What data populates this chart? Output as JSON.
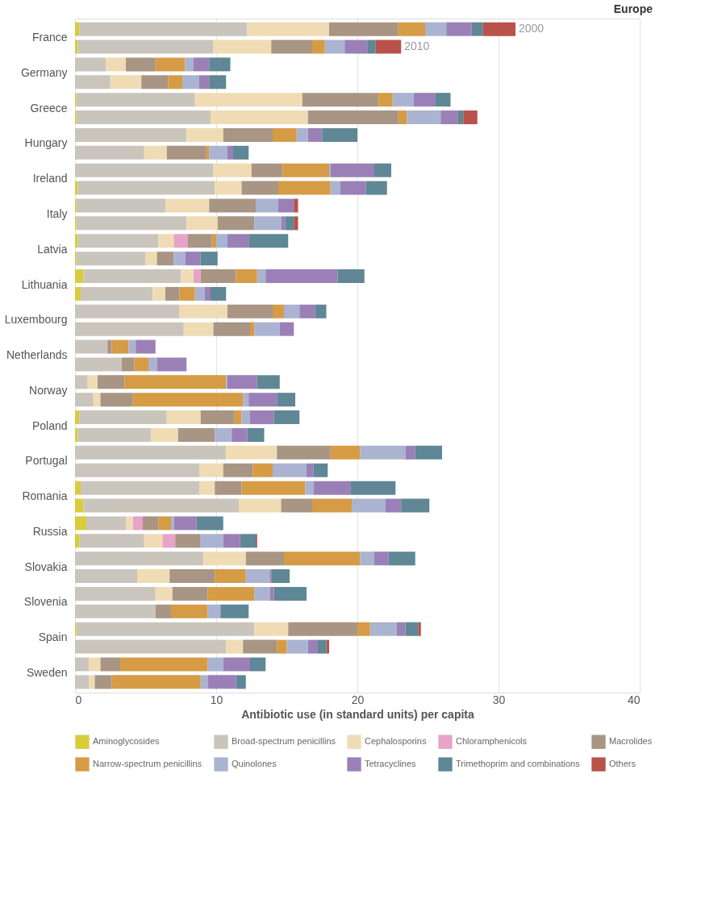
{
  "chart_data": {
    "type": "bar",
    "orientation": "horizontal",
    "stacked": true,
    "title": "Europe",
    "xlabel": "Antibiotic use (in standard units) per capita",
    "categories": [
      "France",
      null,
      "Germany",
      null,
      "Greece",
      null,
      "Hungary",
      null,
      "Ireland",
      null,
      "Italy",
      null,
      "Latvia",
      null,
      "Lithuania",
      null,
      "Luxembourg",
      null,
      "Netherlands",
      null,
      "Norway",
      null,
      "Poland",
      null,
      "Portugal",
      null,
      "Romania",
      null,
      "Russia",
      null,
      "Slovakia",
      null,
      "Slovenia",
      null,
      "Spain",
      null,
      "Sweden",
      null
    ],
    "xlim": [
      0,
      40
    ],
    "xticks": [
      0,
      10,
      20,
      30,
      40
    ],
    "grid": "x",
    "legend": "bottom",
    "annotations": [
      "2000",
      "2010"
    ],
    "series": [
      {
        "name": "Aminoglycosides",
        "color": "#d9cc3a",
        "values": [
          0.3,
          0.2,
          null,
          null,
          0.1,
          0.1,
          null,
          null,
          null,
          0.2,
          0.1,
          0.1,
          0.2,
          0.1,
          0.6,
          0.4,
          null,
          null,
          null,
          null,
          null,
          null,
          0.3,
          0.2,
          null,
          null,
          0.4,
          0.6,
          0.8,
          0.3,
          null,
          null,
          null,
          null,
          0.1,
          null,
          null,
          null
        ]
      },
      {
        "name": "Broad-spectrum penicillins",
        "color": "#c9c5bc",
        "values": [
          11.9,
          9.6,
          2.2,
          2.5,
          8.4,
          9.5,
          7.9,
          4.9,
          9.8,
          9.7,
          6.3,
          7.8,
          5.7,
          4.9,
          6.9,
          5.1,
          7.4,
          7.7,
          2.3,
          3.3,
          0.9,
          1.3,
          6.2,
          5.2,
          10.7,
          8.8,
          8.4,
          11.0,
          2.8,
          4.6,
          9.1,
          4.4,
          5.7,
          5.7,
          12.6,
          10.7,
          1.0,
          1.0
        ]
      },
      {
        "name": "Cephalosporins",
        "color": "#f0dcb4",
        "values": [
          5.8,
          4.1,
          1.4,
          2.2,
          7.6,
          6.9,
          2.6,
          1.6,
          2.7,
          1.9,
          3.1,
          2.2,
          1.1,
          0.8,
          0.9,
          0.9,
          3.4,
          2.1,
          null,
          null,
          0.7,
          0.5,
          2.4,
          1.9,
          3.6,
          1.7,
          1.1,
          3.0,
          0.5,
          1.3,
          3.0,
          2.3,
          1.2,
          null,
          2.4,
          1.2,
          0.8,
          0.4
        ]
      },
      {
        "name": "Chloramphenicols",
        "color": "#e7a3c9",
        "values": [
          null,
          null,
          null,
          null,
          null,
          null,
          null,
          null,
          null,
          null,
          null,
          null,
          1.0,
          null,
          0.5,
          null,
          null,
          null,
          null,
          null,
          null,
          null,
          null,
          null,
          null,
          null,
          null,
          null,
          0.7,
          0.9,
          null,
          null,
          null,
          null,
          null,
          null,
          null,
          null
        ]
      },
      {
        "name": "Macrolides",
        "color": "#a89584",
        "values": [
          4.9,
          2.9,
          2.1,
          1.9,
          5.4,
          6.4,
          3.5,
          2.8,
          2.2,
          2.6,
          3.3,
          2.6,
          1.7,
          1.2,
          2.5,
          1.0,
          3.2,
          2.6,
          0.3,
          0.9,
          1.9,
          2.3,
          2.4,
          2.6,
          3.8,
          2.1,
          1.9,
          2.2,
          1.1,
          1.8,
          2.7,
          3.2,
          2.5,
          1.1,
          4.9,
          2.4,
          1.4,
          1.2
        ]
      },
      {
        "name": "Narrow-spectrum penicillins",
        "color": "#d69b45",
        "values": [
          1.9,
          0.9,
          2.1,
          1.0,
          1.0,
          0.6,
          1.7,
          0.2,
          3.3,
          3.7,
          null,
          null,
          0.3,
          null,
          1.5,
          1.1,
          0.8,
          0.3,
          1.2,
          1.0,
          7.2,
          7.8,
          0.5,
          null,
          2.1,
          1.4,
          4.5,
          2.8,
          0.9,
          null,
          5.4,
          2.2,
          3.3,
          2.6,
          0.9,
          0.7,
          6.2,
          6.3
        ]
      },
      {
        "name": "Quinolones",
        "color": "#aab4d1",
        "values": [
          1.5,
          1.4,
          0.6,
          1.2,
          1.5,
          2.4,
          0.8,
          1.3,
          0.1,
          0.7,
          1.6,
          1.9,
          0.8,
          0.8,
          0.6,
          0.7,
          1.1,
          1.8,
          0.5,
          0.6,
          0.1,
          0.4,
          0.6,
          1.2,
          3.2,
          2.4,
          0.6,
          2.4,
          0.2,
          1.6,
          1.0,
          1.7,
          1.1,
          0.9,
          1.9,
          1.5,
          1.1,
          0.5
        ]
      },
      {
        "name": "Tetracyclines",
        "color": "#9b80b8",
        "values": [
          1.8,
          1.6,
          1.1,
          0.7,
          1.5,
          1.2,
          1.0,
          0.4,
          3.1,
          1.8,
          1.1,
          0.3,
          1.5,
          1.1,
          5.1,
          0.4,
          1.1,
          1.0,
          1.4,
          2.1,
          2.1,
          2.0,
          1.7,
          1.1,
          0.7,
          0.5,
          2.6,
          1.1,
          1.6,
          1.2,
          1.0,
          0.1,
          0.3,
          null,
          0.6,
          0.7,
          1.9,
          2.0
        ]
      },
      {
        "name": "Trimethoprim and combinations",
        "color": "#5f8795",
        "values": [
          0.8,
          0.6,
          1.5,
          1.2,
          1.1,
          0.4,
          2.5,
          1.1,
          1.2,
          1.5,
          null,
          0.6,
          2.8,
          1.2,
          1.9,
          1.1,
          0.8,
          null,
          null,
          null,
          1.6,
          1.3,
          1.8,
          1.2,
          1.9,
          1.0,
          3.2,
          2.0,
          1.9,
          1.1,
          1.9,
          1.3,
          2.3,
          2.0,
          0.9,
          0.6,
          1.1,
          0.7
        ]
      },
      {
        "name": "Others",
        "color": "#b8524a",
        "values": [
          2.3,
          1.8,
          null,
          null,
          null,
          1.0,
          null,
          null,
          null,
          null,
          0.3,
          0.3,
          null,
          null,
          null,
          null,
          null,
          null,
          null,
          null,
          null,
          null,
          null,
          null,
          null,
          null,
          null,
          null,
          null,
          0.1,
          null,
          null,
          null,
          null,
          0.2,
          0.2,
          null,
          null
        ]
      }
    ]
  }
}
